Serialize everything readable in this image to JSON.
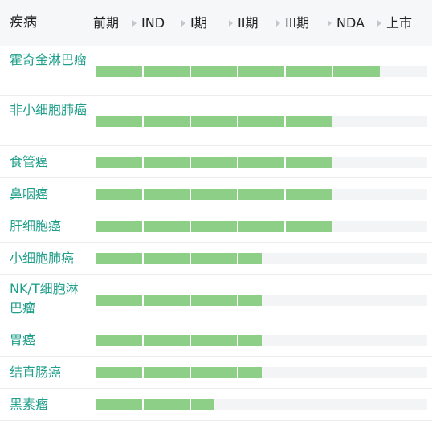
{
  "header": {
    "disease_label": "疾病",
    "stages": [
      {
        "label": "前期",
        "arrow": false
      },
      {
        "label": "IND",
        "arrow": true
      },
      {
        "label": "I期",
        "arrow": true
      },
      {
        "label": "II期",
        "arrow": true
      },
      {
        "label": "III期",
        "arrow": true
      },
      {
        "label": "NDA",
        "arrow": true
      },
      {
        "label": "上市",
        "arrow": true
      }
    ]
  },
  "colors": {
    "progress_fill": "#8dcf87",
    "track": "#f3f4f6",
    "disease_text": "#1f9f8a",
    "header_bg": "#f6f7f9"
  },
  "rows": [
    {
      "name": "霍奇金淋巴瘤",
      "progress_stages": 6.0
    },
    {
      "name": "非小细胞肺癌",
      "progress_stages": 5.0
    },
    {
      "name": "食管癌",
      "progress_stages": 5.0
    },
    {
      "name": "鼻咽癌",
      "progress_stages": 5.0
    },
    {
      "name": "肝细胞癌",
      "progress_stages": 5.0
    },
    {
      "name": "小细胞肺癌",
      "progress_stages": 3.5
    },
    {
      "name": "NK/T细胞淋巴瘤",
      "progress_stages": 3.5
    },
    {
      "name": "胃癌",
      "progress_stages": 3.5
    },
    {
      "name": "结直肠癌",
      "progress_stages": 3.5
    },
    {
      "name": "黑素瘤",
      "progress_stages": 2.5
    }
  ],
  "total_stages": 7
}
